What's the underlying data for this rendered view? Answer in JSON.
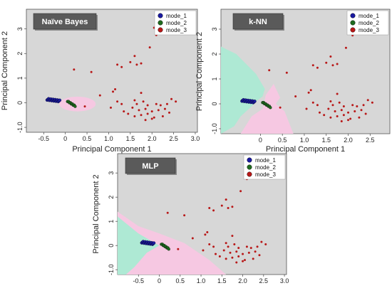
{
  "chart_data": [
    {
      "type": "scatter",
      "title": "Naïve Bayes",
      "xlabel": "Principal Component 1",
      "ylabel": "Principal Component 2",
      "xlim": [
        -0.9,
        3.05
      ],
      "ylim": [
        -1.2,
        3.8
      ],
      "xticks": [
        "-0.5",
        "0",
        "0.5",
        "1.0",
        "1.5",
        "2.0",
        "2.5",
        "3.0"
      ],
      "yticks": [
        "-1.0",
        "0",
        "1",
        "2",
        "3"
      ],
      "legend": [
        "mode_1",
        "mode_2",
        "mode_3"
      ],
      "legend_position": "top-right",
      "colors": {
        "mode_1": "#1a1aa0",
        "mode_2": "#1f6b1f",
        "mode_3": "#b81818",
        "region_1": "#aee9d4",
        "region_2": "#f6c8e2",
        "background": "#d7d7d7"
      }
    },
    {
      "type": "scatter",
      "title": "k-NN",
      "xlabel": "Principal Component 1",
      "ylabel": "Principal Component 2",
      "xlim": [
        -0.9,
        2.95
      ],
      "ylim": [
        -1.2,
        3.8
      ],
      "xticks": [
        "0",
        "0.5",
        "1.0",
        "1.5",
        "2.0",
        "2.5"
      ],
      "yticks": [
        "-1.0",
        "0",
        "1",
        "2",
        "3"
      ],
      "legend": [
        "mode_1",
        "mode_2",
        "mode_3"
      ],
      "legend_position": "top-right",
      "colors": {
        "mode_1": "#1a1aa0",
        "mode_2": "#1f6b1f",
        "mode_3": "#b81818",
        "region_1": "#aee9d4",
        "region_2": "#f6c8e2",
        "background": "#d7d7d7"
      }
    },
    {
      "type": "scatter",
      "title": "MLP",
      "xlabel": "",
      "ylabel": "Principal Component 2",
      "xlim": [
        -1.0,
        3.05
      ],
      "ylim": [
        -1.2,
        3.8
      ],
      "xticks": [
        "-0.5",
        "0",
        "0.5",
        "1.0",
        "1.5",
        "2.0",
        "2.5",
        "3.0"
      ],
      "yticks": [
        "-1.0",
        "0",
        "1",
        "2",
        "3"
      ],
      "legend": [
        "mode_1",
        "mode_2",
        "mode_3"
      ],
      "legend_position": "top-right",
      "colors": {
        "mode_1": "#1a1aa0",
        "mode_2": "#1f6b1f",
        "mode_3": "#b81818",
        "region_1": "#aee9d4",
        "region_2": "#f6c8e2",
        "background": "#d7d7d7"
      }
    }
  ]
}
